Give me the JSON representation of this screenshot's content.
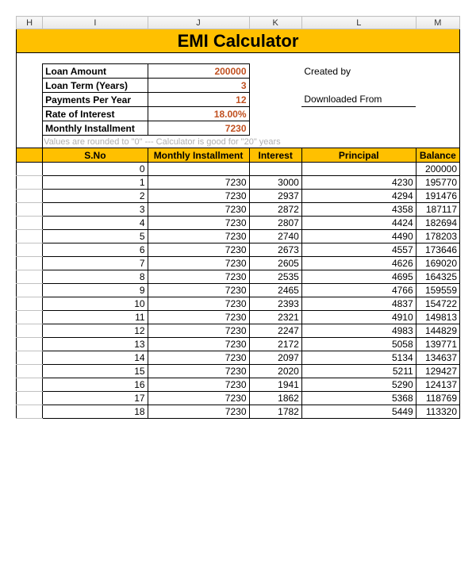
{
  "columns": [
    "H",
    "I",
    "J",
    "K",
    "L",
    "M"
  ],
  "title": "EMI Calculator",
  "params": [
    {
      "label": "Loan Amount",
      "value": "200000",
      "side": "Created by"
    },
    {
      "label": "Loan Term (Years)",
      "value": "3",
      "side": ""
    },
    {
      "label": "Payments Per Year",
      "value": "12",
      "side": "Downloaded From",
      "underline": true
    },
    {
      "label": "Rate of Interest",
      "value": "18.00%",
      "side": ""
    },
    {
      "label": "Monthly Installment",
      "value": "7230",
      "side": ""
    }
  ],
  "note": "Values are rounded to \"0\"  ---  Calculator is good for \"20\" years",
  "headers": [
    "",
    "S.No",
    "Monthly Installment",
    "Interest",
    "Principal",
    "Balance"
  ],
  "rows": [
    [
      "0",
      "",
      "",
      "",
      "200000"
    ],
    [
      "1",
      "7230",
      "3000",
      "4230",
      "195770"
    ],
    [
      "2",
      "7230",
      "2937",
      "4294",
      "191476"
    ],
    [
      "3",
      "7230",
      "2872",
      "4358",
      "187117"
    ],
    [
      "4",
      "7230",
      "2807",
      "4424",
      "182694"
    ],
    [
      "5",
      "7230",
      "2740",
      "4490",
      "178203"
    ],
    [
      "6",
      "7230",
      "2673",
      "4557",
      "173646"
    ],
    [
      "7",
      "7230",
      "2605",
      "4626",
      "169020"
    ],
    [
      "8",
      "7230",
      "2535",
      "4695",
      "164325"
    ],
    [
      "9",
      "7230",
      "2465",
      "4766",
      "159559"
    ],
    [
      "10",
      "7230",
      "2393",
      "4837",
      "154722"
    ],
    [
      "11",
      "7230",
      "2321",
      "4910",
      "149813"
    ],
    [
      "12",
      "7230",
      "2247",
      "4983",
      "144829"
    ],
    [
      "13",
      "7230",
      "2172",
      "5058",
      "139771"
    ],
    [
      "14",
      "7230",
      "2097",
      "5134",
      "134637"
    ],
    [
      "15",
      "7230",
      "2020",
      "5211",
      "129427"
    ],
    [
      "16",
      "7230",
      "1941",
      "5290",
      "124137"
    ],
    [
      "17",
      "7230",
      "1862",
      "5368",
      "118769"
    ],
    [
      "18",
      "7230",
      "1782",
      "5449",
      "113320"
    ]
  ],
  "colors": {
    "accent_bg": "#ffc000",
    "value_color": "#c05020",
    "note_color": "#b0b0b0"
  }
}
